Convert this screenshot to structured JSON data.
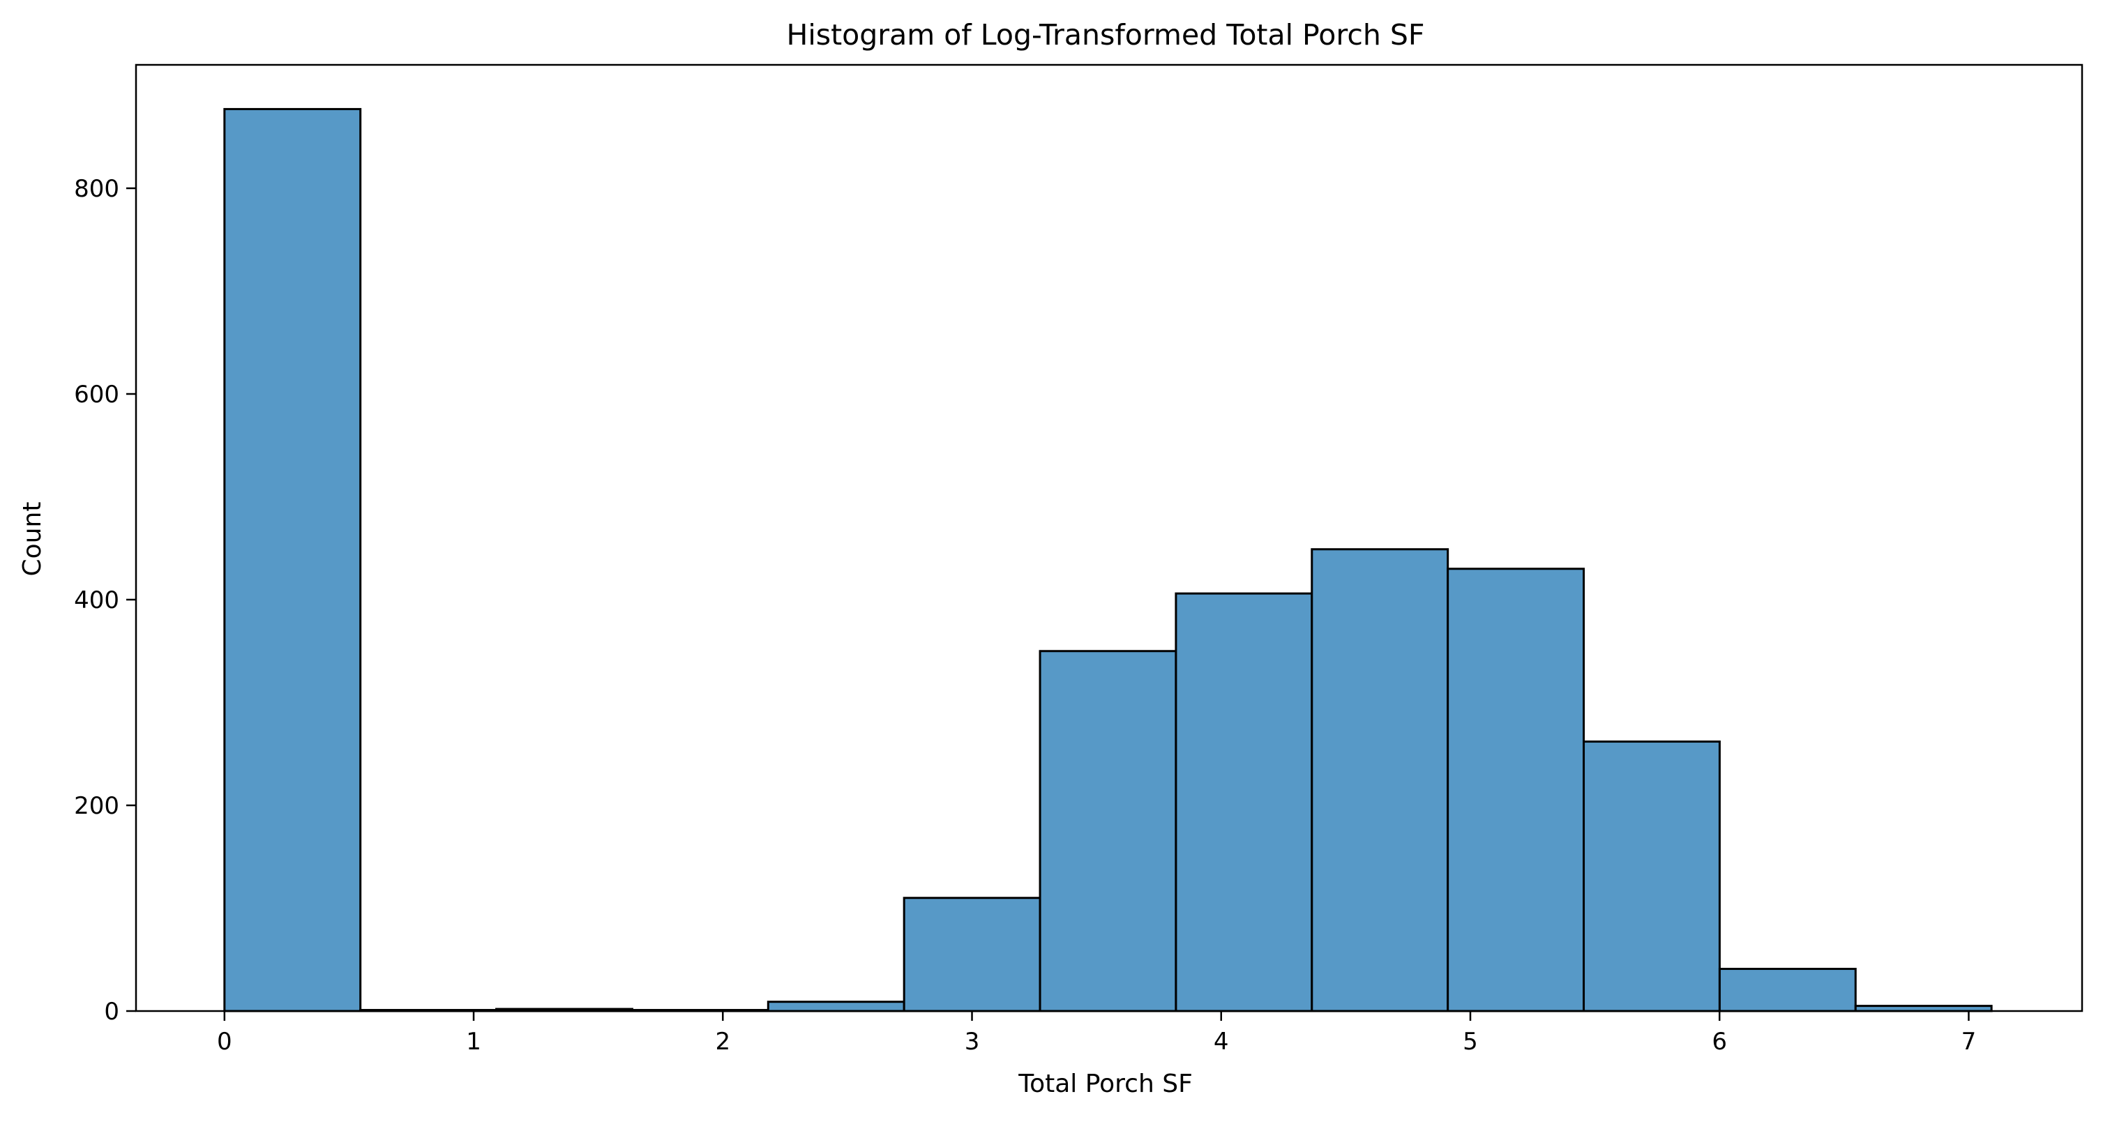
{
  "chart_data": {
    "type": "bar",
    "title": "Histogram of Log-Transformed Total Porch SF",
    "xlabel": "Total Porch SF",
    "ylabel": "Count",
    "xlim": [
      -0.355,
      7.455
    ],
    "ylim": [
      0,
      920
    ],
    "x_ticks": [
      0,
      1,
      2,
      3,
      4,
      5,
      6,
      7
    ],
    "y_ticks": [
      0,
      200,
      400,
      600,
      800
    ],
    "bin_edges": [
      0,
      0.5455,
      1.091,
      1.6365,
      2.182,
      2.7275,
      3.273,
      3.8185,
      4.364,
      4.9095,
      5.455,
      6.0005,
      6.546,
      7.0915
    ],
    "values": [
      877,
      1,
      2,
      1,
      9,
      110,
      350,
      406,
      449,
      430,
      262,
      41,
      5
    ],
    "bar_color": "#5799c7",
    "edge_color": "#000000",
    "grid": false
  }
}
